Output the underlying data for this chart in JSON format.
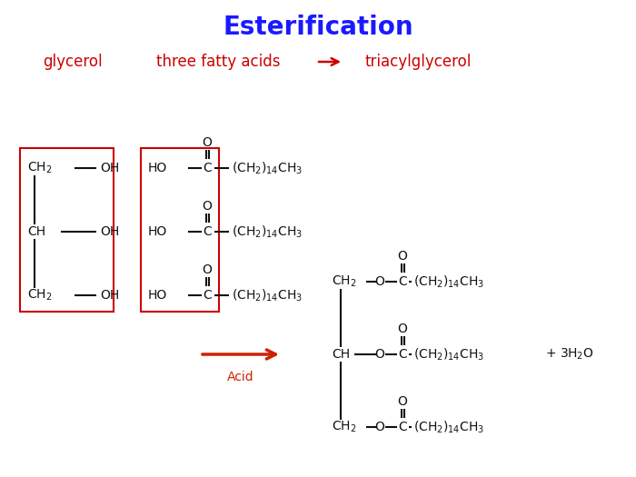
{
  "title": "Esterification",
  "title_color": "#1a1aff",
  "title_fontsize": 20,
  "label_color": "#cc0000",
  "arrow_color": "#cc2200",
  "bond_color": "#111111",
  "bg_color": "#ffffff",
  "subtitle_labels": [
    "glycerol",
    "three fatty acids",
    "triacylglycerol"
  ],
  "fs_main": 10,
  "fs_label": 12
}
